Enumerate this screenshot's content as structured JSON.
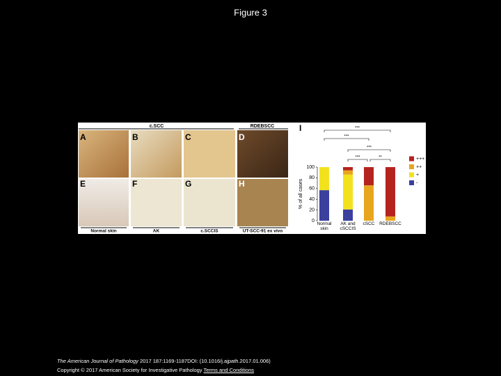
{
  "header": {
    "title": "Figure 3"
  },
  "figure": {
    "group_labels": [
      "c.SCC",
      "RDEBSCC"
    ],
    "panel_labels": [
      "A",
      "B",
      "C",
      "D",
      "E",
      "F",
      "G",
      "H",
      "I"
    ],
    "bottom_labels": [
      "Normal skin",
      "AK",
      "c.SCCIS",
      "UT-SCC-91 ex vivo"
    ]
  },
  "chart_data": {
    "type": "stacked-bar",
    "y_label": "% of all cases",
    "categories": [
      "Normal skin",
      "AK and cSCCIS",
      "cSCC",
      "RDEBSCC"
    ],
    "series": [
      {
        "name": "-",
        "color": "#3b3f9e",
        "values": [
          57,
          21,
          0,
          0
        ]
      },
      {
        "name": "+",
        "color": "#f2e21e",
        "values": [
          43,
          65,
          0,
          0
        ]
      },
      {
        "name": "++",
        "color": "#e8a51e",
        "values": [
          0,
          8,
          66,
          8
        ]
      },
      {
        "name": "+++",
        "color": "#b5231f",
        "values": [
          0,
          6,
          34,
          92
        ]
      }
    ],
    "ylim": [
      0,
      100
    ],
    "yticks": [
      0,
      20,
      40,
      60,
      80,
      100
    ],
    "annotations": [
      "***",
      "***",
      "***",
      "***",
      "**"
    ]
  },
  "footer": {
    "journal": "The American Journal of Pathology",
    "citation": "2017 187:1169-1187DOI: (10.1016/j.ajpath.2017.01.006)",
    "copyright": "Copyright © 2017 American Society for Investigative Pathology",
    "link": "Terms and Conditions"
  }
}
